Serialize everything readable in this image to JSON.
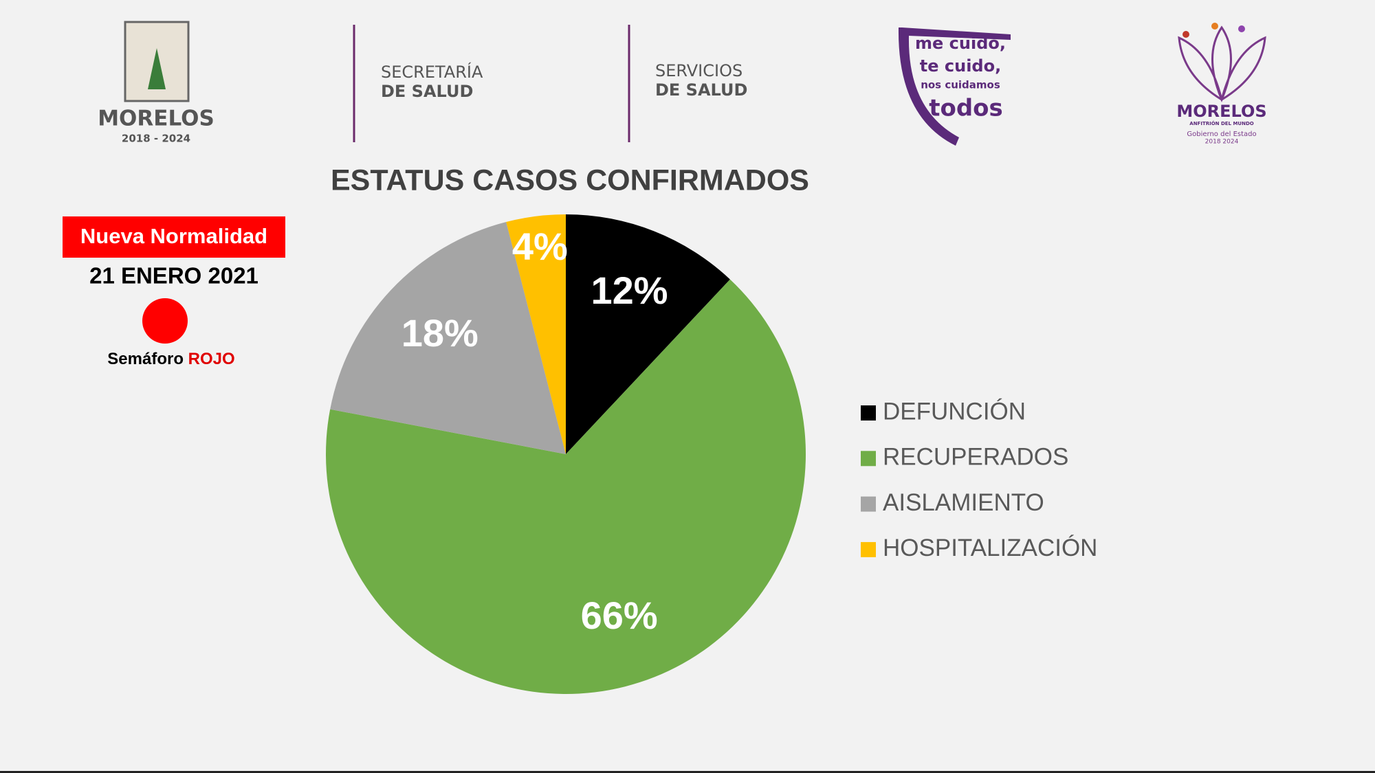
{
  "header": {
    "morelos_logo": {
      "name": "MORELOS",
      "years": "2018 - 2024"
    },
    "secretaria": {
      "line1": "SECRETARÍA",
      "line2": "DE SALUD"
    },
    "servicios": {
      "line1": "SERVICIOS",
      "line2": "DE SALUD"
    },
    "campaign": {
      "line1": "me cuido,",
      "line2": "te cuido,",
      "line3": "nos cuidamos",
      "line4": "todos"
    },
    "government_logo": {
      "name": "MORELOS",
      "tagline": "ANFITRIÓN DEL MUNDO",
      "line1": "Gobierno del Estado",
      "line2": "2018 2024"
    }
  },
  "status_panel": {
    "badge": "Nueva Normalidad",
    "date": "21 ENERO 2021",
    "semaphore_label": "Semáforo",
    "semaphore_color": "ROJO"
  },
  "chart_data": {
    "type": "pie",
    "title": "ESTATUS CASOS CONFIRMADOS",
    "categories": [
      "DEFUNCIÓN",
      "RECUPERADOS",
      "AISLAMIENTO",
      "HOSPITALIZACIÓN"
    ],
    "values": [
      12,
      66,
      18,
      4
    ],
    "value_labels": [
      "12%",
      "66%",
      "18%",
      "4%"
    ],
    "colors": [
      "#000000",
      "#70ad47",
      "#a5a5a5",
      "#ffc000"
    ],
    "legend": "right"
  }
}
